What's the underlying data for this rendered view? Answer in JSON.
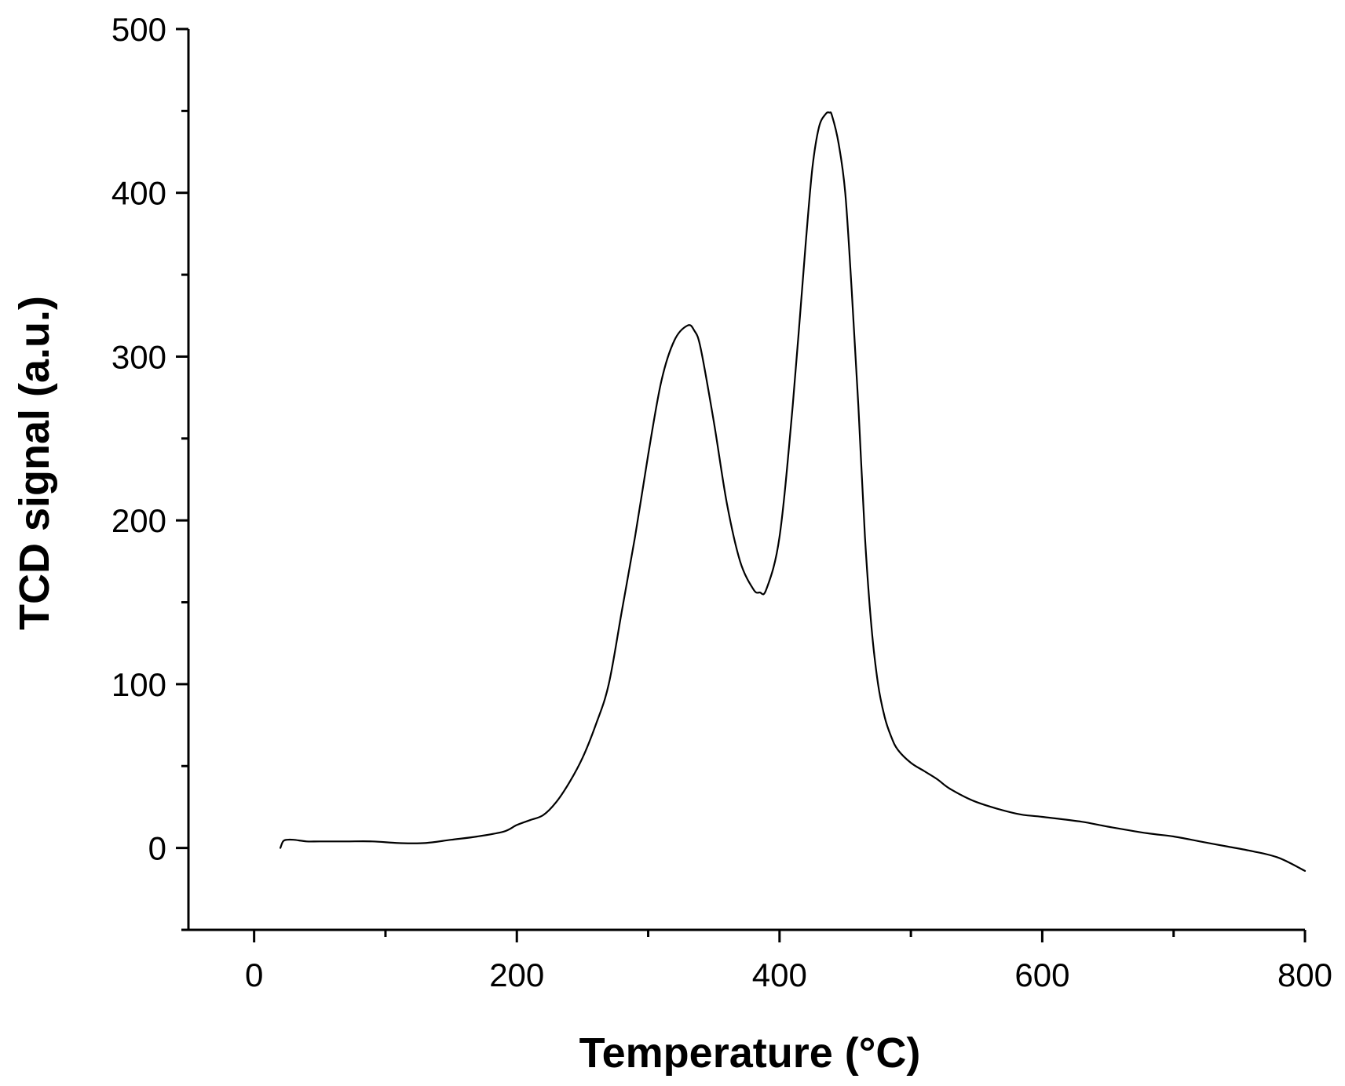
{
  "chart_data": {
    "type": "line",
    "title": "",
    "xlabel": "Temperature (°C)",
    "ylabel": "TCD signal (a.u.)",
    "xlim": [
      -50,
      800
    ],
    "ylim": [
      -50,
      500
    ],
    "xticks": [
      0,
      200,
      400,
      600,
      800
    ],
    "xtick_labels": [
      "0",
      "200",
      "400",
      "600",
      "800"
    ],
    "yticks": [
      0,
      100,
      200,
      300,
      400,
      500
    ],
    "ytick_labels": [
      "0",
      "100",
      "200",
      "300",
      "400",
      "500"
    ],
    "x_minor_step": 100,
    "y_minor_step": 50,
    "grid": false,
    "legend": "none",
    "line_color": "#000000",
    "series": [
      {
        "x": [
          20,
          22,
          25,
          30,
          40,
          50,
          70,
          90,
          110,
          130,
          150,
          170,
          190,
          200,
          210,
          220,
          230,
          240,
          250,
          260,
          270,
          280,
          290,
          300,
          310,
          320,
          330,
          335,
          340,
          350,
          360,
          370,
          380,
          385,
          390,
          400,
          410,
          420,
          425,
          430,
          435,
          438,
          440,
          445,
          450,
          455,
          460,
          465,
          470,
          475,
          480,
          485,
          490,
          500,
          510,
          520,
          530,
          550,
          580,
          600,
          630,
          650,
          680,
          700,
          720,
          740,
          760,
          780,
          800
        ],
        "y": [
          0,
          4,
          5,
          5,
          4,
          4,
          4,
          4,
          3,
          3,
          5,
          7,
          10,
          14,
          17,
          20,
          28,
          40,
          55,
          75,
          100,
          145,
          190,
          240,
          285,
          310,
          319,
          316,
          305,
          260,
          210,
          175,
          158,
          156,
          158,
          190,
          270,
          370,
          415,
          440,
          448,
          449,
          447,
          430,
          400,
          340,
          270,
          190,
          135,
          100,
          80,
          68,
          60,
          52,
          47,
          42,
          36,
          28,
          21,
          19,
          16,
          13,
          9,
          7,
          4,
          1,
          -2,
          -6,
          -14
        ]
      }
    ]
  }
}
